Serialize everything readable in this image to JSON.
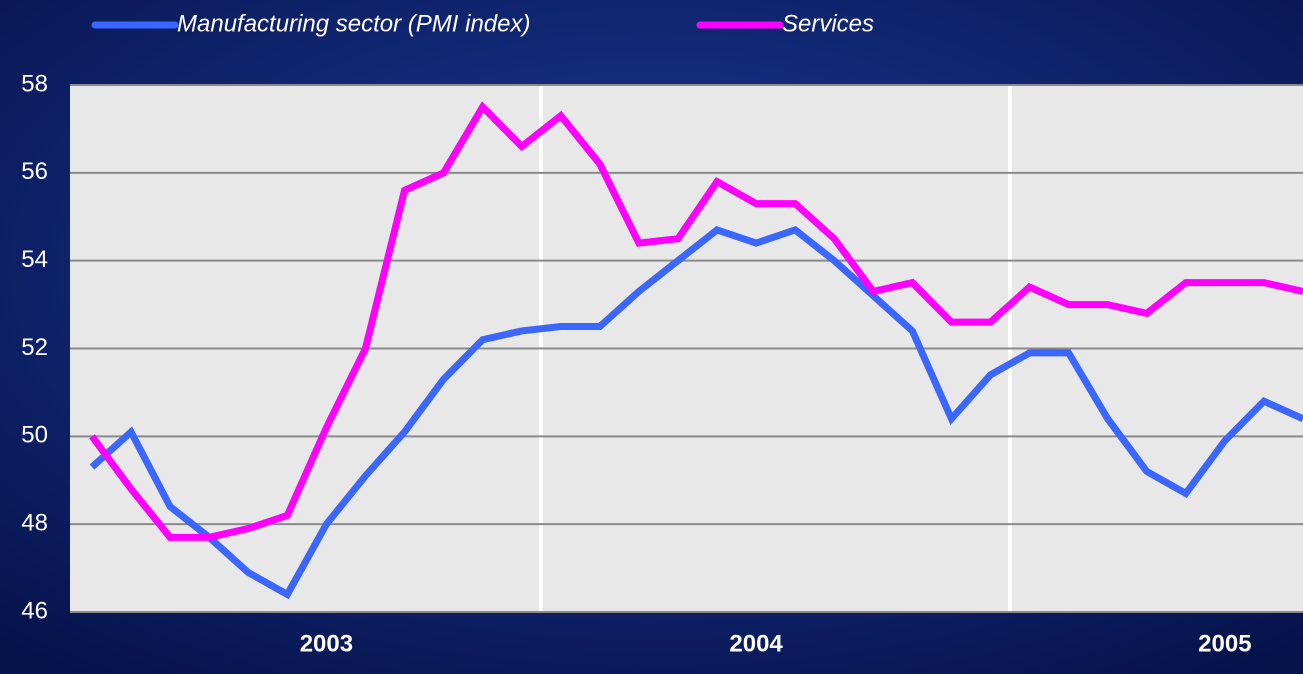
{
  "chart_data": {
    "type": "line",
    "categories": [
      null,
      null,
      null,
      null,
      null,
      null,
      "2003",
      null,
      null,
      null,
      null,
      null,
      null,
      null,
      null,
      null,
      null,
      "2004",
      null,
      null,
      null,
      null,
      null,
      null,
      null,
      null,
      null,
      null,
      null,
      "2005",
      null,
      null
    ],
    "series": [
      {
        "name": "Manufacturing sector (PMI index)",
        "color": "#3b66ff",
        "values": [
          49.3,
          50.1,
          48.4,
          47.7,
          46.9,
          46.4,
          48.0,
          49.1,
          50.1,
          51.3,
          52.2,
          52.4,
          52.5,
          52.5,
          53.3,
          54.0,
          54.7,
          54.4,
          54.7,
          54.0,
          53.2,
          52.4,
          50.4,
          51.4,
          51.9,
          51.9,
          50.4,
          49.2,
          48.7,
          49.9,
          50.8,
          50.4
        ]
      },
      {
        "name": "Services",
        "color": "#ff00ff",
        "values": [
          50.0,
          48.8,
          47.7,
          47.7,
          47.9,
          48.2,
          50.2,
          52.0,
          55.6,
          56.0,
          57.5,
          56.6,
          57.3,
          56.2,
          54.4,
          54.5,
          55.8,
          55.3,
          55.3,
          54.5,
          53.3,
          53.5,
          52.6,
          52.6,
          53.4,
          53.0,
          53.0,
          52.8,
          53.5,
          53.5,
          53.5,
          53.3
        ]
      }
    ],
    "ylim": [
      46,
      58
    ],
    "yticks": [
      46,
      48,
      50,
      52,
      54,
      56,
      58
    ],
    "grid": true
  }
}
